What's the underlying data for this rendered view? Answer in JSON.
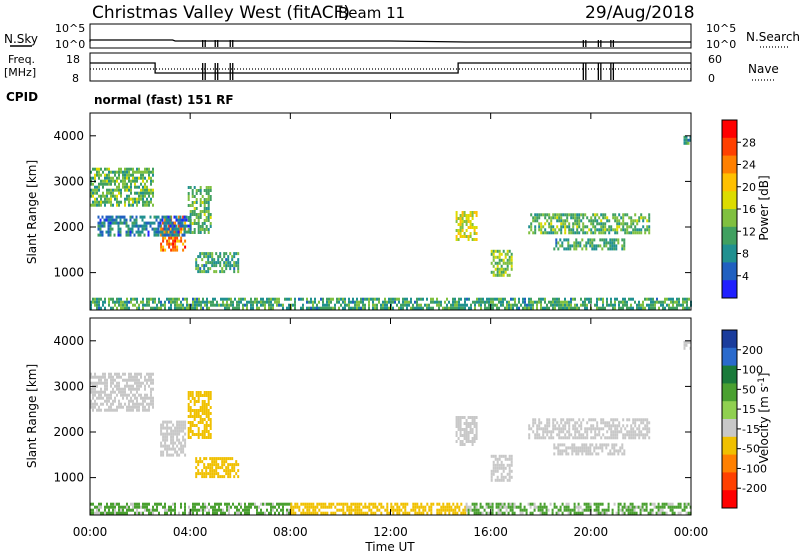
{
  "header": {
    "station": "Christmas Valley West (fitACF)",
    "beam": "Beam 11",
    "date": "29/Aug/2018"
  },
  "params": {
    "nsky_label": "N.Sky",
    "nsearch_label": "N.Search",
    "freq_label_1": "Freq.",
    "freq_label_2": "[MHz]",
    "nave_label": "Nave",
    "cpid_label": "CPID",
    "cpid_value": "normal (fast) 151 RF",
    "noise_ticks": [
      "10^5",
      "10^0"
    ],
    "noise_ticks_right": [
      "10^5",
      "10^0"
    ],
    "freq_ticks": [
      "18",
      "8"
    ],
    "nave_ticks": [
      "60",
      "0"
    ]
  },
  "axes": {
    "xlabel": "Time UT",
    "ylabel": "Slant Range [km]",
    "x_ticks": [
      "00:00",
      "04:00",
      "08:00",
      "12:00",
      "16:00",
      "20:00",
      "00:00"
    ],
    "y_ticks": [
      "4000",
      "3000",
      "2000",
      "1000"
    ]
  },
  "power_scale": {
    "label": "Power [dB]",
    "ticks": [
      "28",
      "24",
      "20",
      "16",
      "12",
      "8",
      "4"
    ],
    "colors": [
      "#ff0000",
      "#ff4000",
      "#ff8000",
      "#ffc000",
      "#dcdc00",
      "#80c040",
      "#40a060",
      "#209090",
      "#2060c0",
      "#2020ff"
    ]
  },
  "velocity_scale": {
    "label": "Velocity [m s",
    "label_sup": "-1",
    "label_end": "]",
    "ticks": [
      "200",
      "100",
      "50",
      "15",
      "-15",
      "-50",
      "-100",
      "-200"
    ],
    "colors": [
      "#1a3c9c",
      "#2a6acc",
      "#1a7a3a",
      "#4aa030",
      "#90d050",
      "#c8c8c8",
      "#f0c000",
      "#ff8000",
      "#ff4000",
      "#ff0000"
    ]
  },
  "chart_data": [
    {
      "type": "heatmap",
      "name": "power",
      "x_range_hours": [
        0,
        24
      ],
      "y_range_km": [
        180,
        4500
      ],
      "value_unit": "dB",
      "value_range": [
        0,
        32
      ],
      "regions": [
        {
          "t": [
            0.0,
            2.5
          ],
          "r": [
            2450,
            3300
          ],
          "value": 12
        },
        {
          "t": [
            2.8,
            3.8
          ],
          "r": [
            1500,
            2250
          ],
          "value": 26
        },
        {
          "t": [
            3.9,
            4.8
          ],
          "r": [
            1900,
            2900
          ],
          "value": 12
        },
        {
          "t": [
            4.2,
            5.9
          ],
          "r": [
            1000,
            1450
          ],
          "value": 10
        },
        {
          "t": [
            0.3,
            4.0
          ],
          "r": [
            1800,
            2250
          ],
          "value": 6
        },
        {
          "t": [
            14.6,
            15.4
          ],
          "r": [
            1700,
            2350
          ],
          "value": 18
        },
        {
          "t": [
            16.0,
            16.8
          ],
          "r": [
            950,
            1500
          ],
          "value": 14
        },
        {
          "t": [
            17.5,
            22.3
          ],
          "r": [
            1900,
            2300
          ],
          "value": 12
        },
        {
          "t": [
            18.5,
            21.3
          ],
          "r": [
            1550,
            1750
          ],
          "value": 10
        },
        {
          "t": [
            23.7,
            24.0
          ],
          "r": [
            3850,
            4000
          ],
          "value": 8
        },
        {
          "t": [
            0.0,
            24.0
          ],
          "r": [
            200,
            450
          ],
          "value": 10
        }
      ]
    },
    {
      "type": "heatmap",
      "name": "velocity",
      "x_range_hours": [
        0,
        24
      ],
      "y_range_km": [
        180,
        4500
      ],
      "value_unit": "m/s",
      "value_range": [
        -250,
        250
      ],
      "regions": [
        {
          "t": [
            0.0,
            2.5
          ],
          "r": [
            2450,
            3300
          ],
          "value": 0
        },
        {
          "t": [
            2.8,
            3.8
          ],
          "r": [
            1500,
            2250
          ],
          "value": 0
        },
        {
          "t": [
            3.9,
            4.8
          ],
          "r": [
            1900,
            2900
          ],
          "value": -30
        },
        {
          "t": [
            4.2,
            5.9
          ],
          "r": [
            1000,
            1450
          ],
          "value": -40
        },
        {
          "t": [
            14.6,
            15.4
          ],
          "r": [
            1700,
            2350
          ],
          "value": 5
        },
        {
          "t": [
            16.0,
            16.8
          ],
          "r": [
            950,
            1500
          ],
          "value": 0
        },
        {
          "t": [
            17.5,
            22.3
          ],
          "r": [
            1900,
            2300
          ],
          "value": 0
        },
        {
          "t": [
            18.5,
            21.3
          ],
          "r": [
            1550,
            1750
          ],
          "value": 0
        },
        {
          "t": [
            23.7,
            24.0
          ],
          "r": [
            3850,
            4000
          ],
          "value": 0
        },
        {
          "t": [
            0.0,
            8.0
          ],
          "r": [
            200,
            450
          ],
          "value": 20
        },
        {
          "t": [
            8.0,
            15.0
          ],
          "r": [
            200,
            450
          ],
          "value": -30
        },
        {
          "t": [
            15.0,
            24.0
          ],
          "r": [
            200,
            450
          ],
          "value": 20
        }
      ]
    }
  ]
}
